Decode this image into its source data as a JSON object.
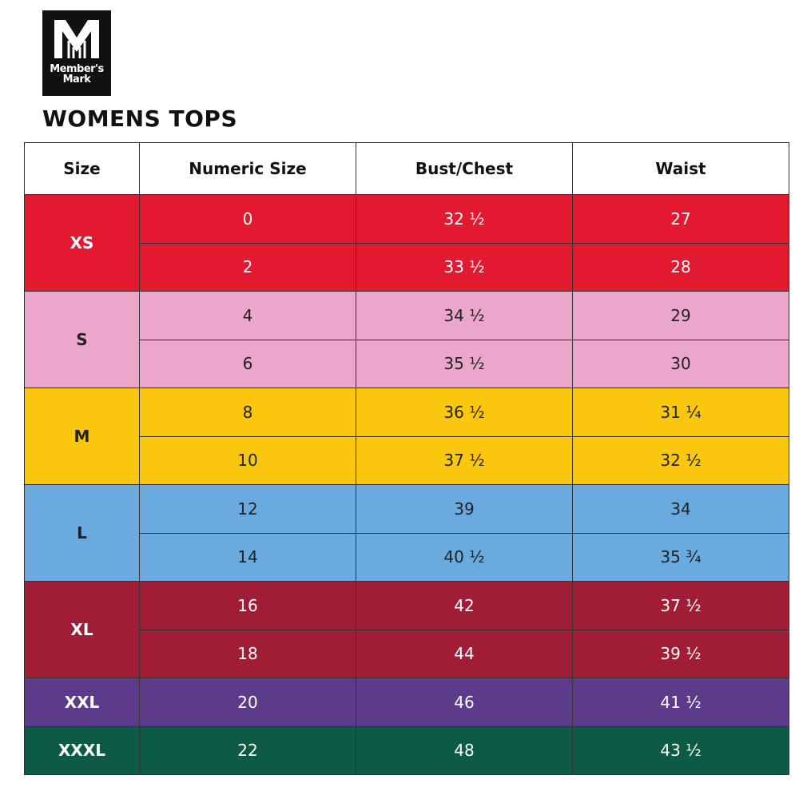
{
  "logo": {
    "line1": "Member's",
    "line2": "Mark"
  },
  "title": "WOMENS TOPS",
  "table": {
    "header": [
      "Size",
      "Numeric Size",
      "Bust/Chest",
      "Waist"
    ],
    "groups": [
      {
        "size": "XS",
        "color": "#e3192f",
        "text_color": "#ffffff",
        "rows": [
          [
            "0",
            "32 ½",
            "27"
          ],
          [
            "2",
            "33 ½",
            "28"
          ]
        ]
      },
      {
        "size": "S",
        "color": "#eaa7cb",
        "text_color": "#222222",
        "rows": [
          [
            "4",
            "34 ½",
            "29"
          ],
          [
            "6",
            "35 ½",
            "30"
          ]
        ]
      },
      {
        "size": "M",
        "color": "#fbc70e",
        "text_color": "#222222",
        "rows": [
          [
            "8",
            "36 ½",
            "31 ¼"
          ],
          [
            "10",
            "37 ½",
            "32 ½"
          ]
        ]
      },
      {
        "size": "L",
        "color": "#6aaade",
        "text_color": "#222222",
        "rows": [
          [
            "12",
            "39",
            "34"
          ],
          [
            "14",
            "40 ½",
            "35 ¾"
          ]
        ]
      },
      {
        "size": "XL",
        "color": "#a11c35",
        "text_color": "#ffffff",
        "rows": [
          [
            "16",
            "42",
            "37 ½"
          ],
          [
            "18",
            "44",
            "39 ½"
          ]
        ]
      },
      {
        "size": "XXL",
        "color": "#5c3b8a",
        "text_color": "#ffffff",
        "rows": [
          [
            "20",
            "46",
            "41 ½"
          ]
        ]
      },
      {
        "size": "XXXL",
        "color": "#0e5b45",
        "text_color": "#ffffff",
        "rows": [
          [
            "22",
            "48",
            "43 ½"
          ]
        ]
      }
    ]
  }
}
